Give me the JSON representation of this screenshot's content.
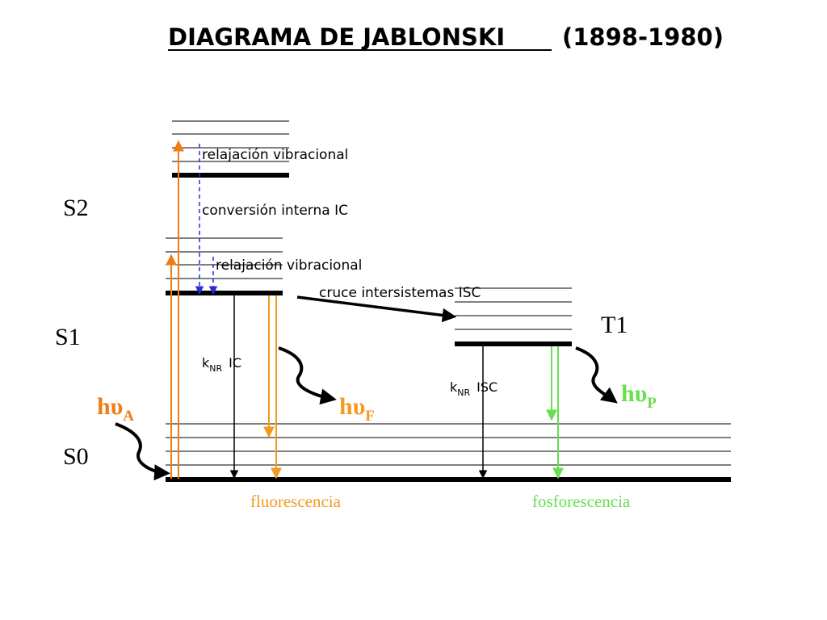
{
  "title": {
    "main": "DIAGRAMA DE JABLONSKI",
    "years": "(1898-1980)"
  },
  "states": {
    "s2": "S2",
    "s1": "S1",
    "s0": "S0",
    "t1": "T1"
  },
  "processes": {
    "vib_relax_s2": "relajación vibracional",
    "internal_conversion": "conversión interna IC",
    "vib_relax_s1": "relajación vibracional",
    "isc": "cruce intersistemas ISC",
    "knr_ic_k": "k",
    "knr_ic_sub": "NR",
    "knr_ic_suffix": "IC",
    "knr_isc_k": "k",
    "knr_isc_sub": "NR",
    "knr_isc_suffix": "ISC"
  },
  "photons": {
    "absorption": {
      "h": "h",
      "nu": "υ",
      "sub": "A"
    },
    "fluorescence": {
      "h": "h",
      "nu": "υ",
      "sub": "F"
    },
    "phosphorescence": {
      "h": "h",
      "nu": "υ",
      "sub": "P"
    }
  },
  "footer": {
    "fluorescence": "fluorescencia",
    "phosphorescence": "fosforescencia"
  },
  "colors": {
    "ink": "#000000",
    "absorption": "#ee7d12",
    "fluorescence": "#f49a1e",
    "phosphorescence": "#66e04f",
    "relaxation": "#2b2bd9"
  }
}
